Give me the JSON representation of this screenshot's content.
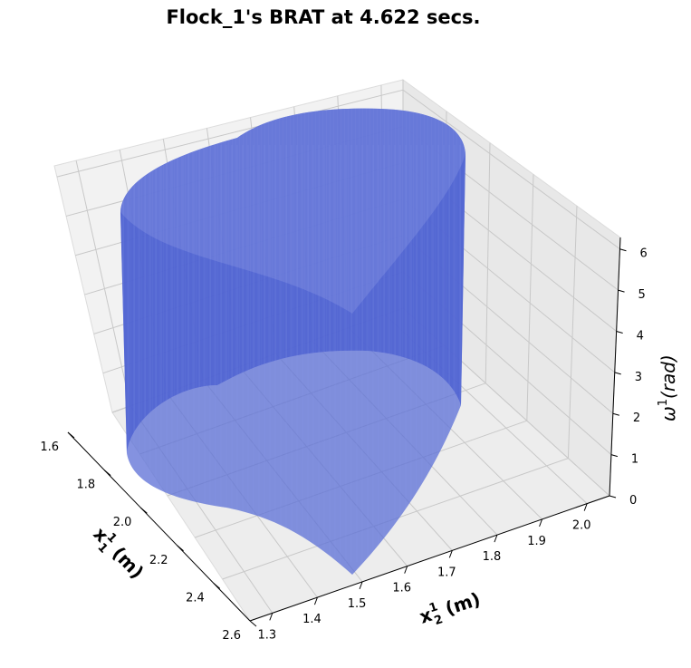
{
  "chart_data": {
    "type": "surface3d",
    "title": "Flock_1's BRAT at 4.622 secs.",
    "x_axis": {
      "label": "x",
      "label_sub": "1",
      "label_sup": "1",
      "label_unit": " (m)",
      "ticks": [
        "1.6",
        "1.8",
        "2.0",
        "2.2",
        "2.4",
        "2.6"
      ],
      "range": [
        1.6,
        2.6
      ]
    },
    "y_axis": {
      "label": "x",
      "label_sub": "2",
      "label_sup": "1",
      "label_unit": " (m)",
      "ticks": [
        "1.3",
        "1.4",
        "1.5",
        "1.6",
        "1.7",
        "1.8",
        "1.9",
        "2.0"
      ],
      "range": [
        1.25,
        2.05
      ]
    },
    "z_axis": {
      "label": "ω",
      "label_sup": "1",
      "label_unit": "(rad)",
      "ticks": [
        "0",
        "1",
        "2",
        "3",
        "4",
        "5",
        "6"
      ],
      "range": [
        0,
        6.28
      ]
    },
    "surface": {
      "color": "#4f63d1",
      "description_shape": "cylindrical extrusion of a cross-section along omega",
      "z_range": [
        0,
        6.28
      ]
    },
    "grid": true,
    "pane_color": "#f2f2f2"
  }
}
